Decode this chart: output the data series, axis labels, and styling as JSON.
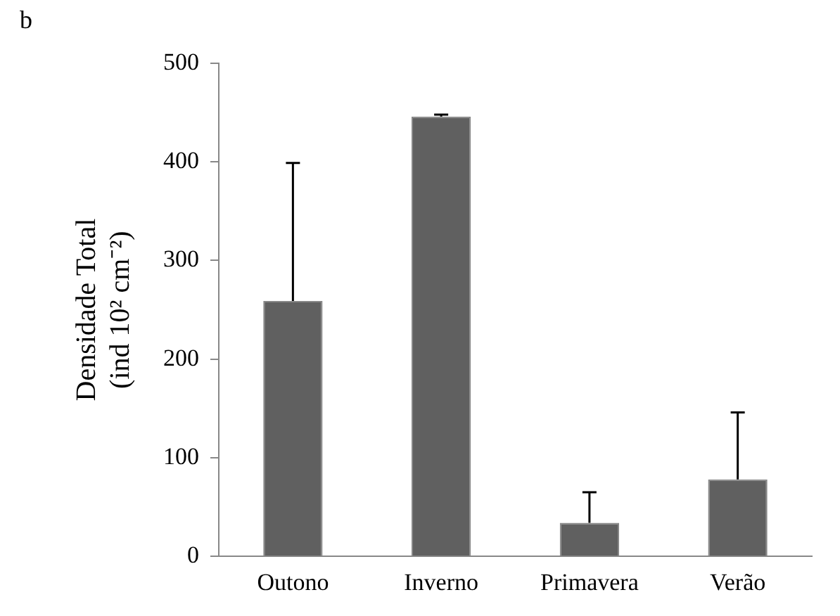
{
  "chart_data": {
    "type": "bar",
    "ylabel": "Densidade Total\n(ind 10² cm⁻²)",
    "annotations": [
      "b"
    ],
    "categories": [
      "Outono",
      "Inverno",
      "Primavera",
      "Verão"
    ],
    "values": [
      259,
      446,
      34,
      78
    ],
    "color": "#606060",
    "errors": [
      [
        259,
        399
      ],
      [
        446,
        448
      ],
      [
        34,
        65
      ],
      [
        78,
        146
      ]
    ],
    "ylim": [
      0,
      500
    ],
    "yticks": [
      0,
      100,
      200,
      300,
      400,
      500
    ],
    "grid": false,
    "legend": false
  }
}
